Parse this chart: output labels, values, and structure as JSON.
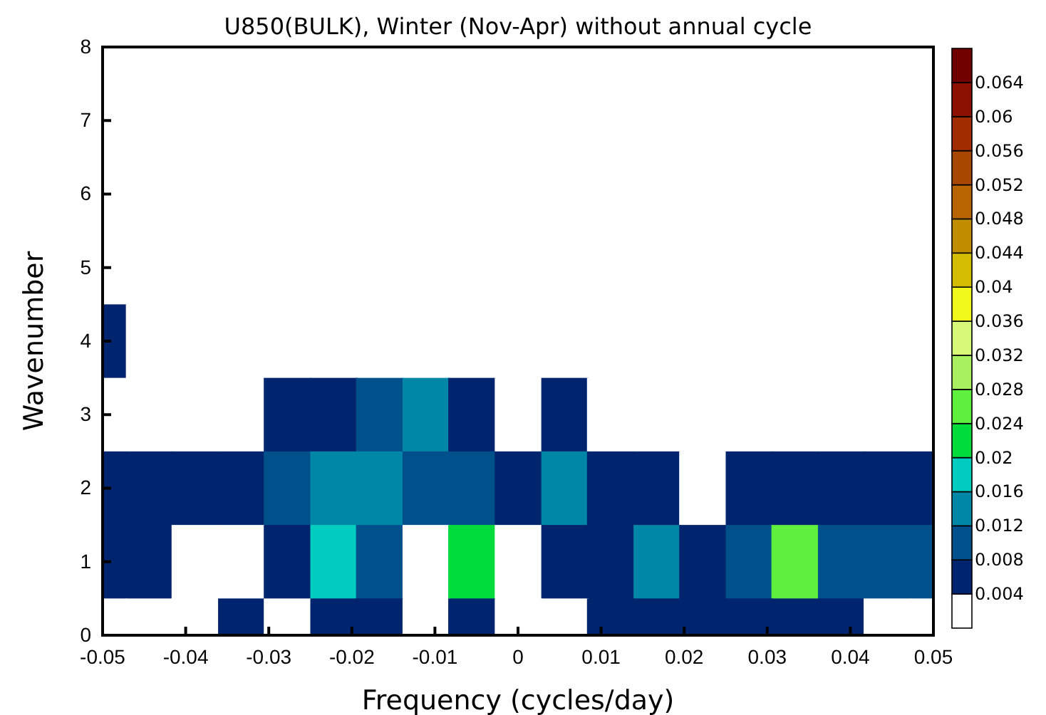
{
  "chart_data": {
    "type": "heatmap",
    "title": "U850(BULK), Winter (Nov-Apr) without annual cycle",
    "xlabel": "Frequency (cycles/day)",
    "ylabel": "Wavenumber",
    "x": [
      -0.05,
      -0.0444,
      -0.0389,
      -0.0333,
      -0.0278,
      -0.0222,
      -0.0167,
      -0.0111,
      -0.0056,
      0,
      0.0056,
      0.0111,
      0.0167,
      0.0222,
      0.0278,
      0.0333,
      0.0389,
      0.0444,
      0.05
    ],
    "y": [
      8,
      7,
      6,
      5,
      4,
      3,
      2,
      1,
      0
    ],
    "cells": [
      [
        0.001,
        0.001,
        0.001,
        0.001,
        0.001,
        0.001,
        0.001,
        0.001,
        0.001,
        0.001,
        0.001,
        0.001,
        0.001,
        0.001,
        0.001,
        0.001,
        0.001,
        0.001,
        0.001
      ],
      [
        0.001,
        0.001,
        0.001,
        0.001,
        0.001,
        0.001,
        0.001,
        0.001,
        0.001,
        0.001,
        0.001,
        0.001,
        0.001,
        0.001,
        0.001,
        0.001,
        0.001,
        0.001,
        0.001
      ],
      [
        0.001,
        0.001,
        0.001,
        0.001,
        0.001,
        0.001,
        0.001,
        0.001,
        0.001,
        0.001,
        0.001,
        0.001,
        0.001,
        0.001,
        0.001,
        0.001,
        0.001,
        0.001,
        0.001
      ],
      [
        0.001,
        0.001,
        0.001,
        0.001,
        0.001,
        0.001,
        0.001,
        0.002,
        0.001,
        0.001,
        0.001,
        0.001,
        0.001,
        0.001,
        0.001,
        0.001,
        0.001,
        0.001,
        0.001
      ],
      [
        0.005,
        0.002,
        0.001,
        0.001,
        0.002,
        0.002,
        0.002,
        0.003,
        0.002,
        0.001,
        0.002,
        0.001,
        0.001,
        0.001,
        0.001,
        0.001,
        0.001,
        0.001,
        0.001
      ],
      [
        0.003,
        0.003,
        0.002,
        0.002,
        0.006,
        0.007,
        0.009,
        0.014,
        0.006,
        0.003,
        0.005,
        0.003,
        0.002,
        0.002,
        0.002,
        0.002,
        0.002,
        0.002,
        0.002
      ],
      [
        0.006,
        0.006,
        0.004,
        0.005,
        0.009,
        0.012,
        0.013,
        0.008,
        0.011,
        0.005,
        0.013,
        0.006,
        0.005,
        0.003,
        0.005,
        0.005,
        0.005,
        0.006,
        0.005
      ],
      [
        0.006,
        0.006,
        0.003,
        0.002,
        0.006,
        0.017,
        0.011,
        0.003,
        0.021,
        0.003,
        0.007,
        0.006,
        0.013,
        0.006,
        0.009,
        0.025,
        0.009,
        0.008,
        0.009
      ],
      [
        0.003,
        0.003,
        0.003,
        0.005,
        0.003,
        0.005,
        0.006,
        0.002,
        0.005,
        0.002,
        0.003,
        0.005,
        0.006,
        0.005,
        0.005,
        0.006,
        0.005,
        0.003,
        0.003
      ]
    ],
    "xlim": [
      -0.05,
      0.05
    ],
    "xticks": [
      -0.05,
      -0.04,
      -0.03,
      -0.02,
      -0.01,
      0,
      0.01,
      0.02,
      0.03,
      0.04,
      0.05
    ],
    "ylim": [
      0,
      8
    ],
    "yticks": [
      0,
      1,
      2,
      3,
      4,
      5,
      6,
      7,
      8
    ],
    "clim": [
      0,
      0.068
    ],
    "cticks": [
      0.004,
      0.008,
      0.012,
      0.016,
      0.02,
      0.024,
      0.028,
      0.032,
      0.036,
      0.04,
      0.044,
      0.048,
      0.052,
      0.056,
      0.06,
      0.064
    ],
    "colors": [
      "#ffffff",
      "#00246e",
      "#00508c",
      "#0087a8",
      "#00cdbf",
      "#00dc3c",
      "#5ef03c",
      "#a8f060",
      "#d8f878",
      "#f0f81c",
      "#d4bc00",
      "#c08c00",
      "#b86400",
      "#a84800",
      "#a02c00",
      "#8c1000",
      "#700000"
    ]
  }
}
